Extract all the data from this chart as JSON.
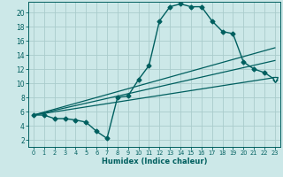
{
  "xlabel": "Humidex (Indice chaleur)",
  "bg_color": "#cce8e8",
  "grid_color": "#aacccc",
  "line_color": "#005f5f",
  "xlim": [
    -0.5,
    23.5
  ],
  "ylim": [
    1.0,
    21.5
  ],
  "yticks": [
    2,
    4,
    6,
    8,
    10,
    12,
    14,
    16,
    18,
    20
  ],
  "xticks": [
    0,
    1,
    2,
    3,
    4,
    5,
    6,
    7,
    8,
    9,
    10,
    11,
    12,
    13,
    14,
    15,
    16,
    17,
    18,
    19,
    20,
    21,
    22,
    23
  ],
  "curve1_x": [
    0,
    1,
    2,
    3,
    4,
    5,
    6,
    7,
    8,
    9,
    10,
    11,
    12,
    13,
    14,
    15,
    16,
    17,
    18,
    19,
    20,
    21,
    22,
    23
  ],
  "curve1_y": [
    5.5,
    5.5,
    5.0,
    5.0,
    4.8,
    4.5,
    3.2,
    2.2,
    8.0,
    8.2,
    10.5,
    12.5,
    18.8,
    20.8,
    21.2,
    20.8,
    20.8,
    18.8,
    17.3,
    17.0,
    13.0,
    12.0,
    11.5,
    10.5
  ],
  "line1_x": [
    0,
    23
  ],
  "line1_y": [
    5.5,
    15.0
  ],
  "line2_x": [
    0,
    23
  ],
  "line2_y": [
    5.5,
    13.2
  ],
  "line3_x": [
    0,
    23
  ],
  "line3_y": [
    5.5,
    10.8
  ],
  "marker_size": 2.5,
  "end_marker_x": 23,
  "end_marker_y": 10.5,
  "xlabel_fontsize": 6.0,
  "tick_fontsize": 5.5
}
